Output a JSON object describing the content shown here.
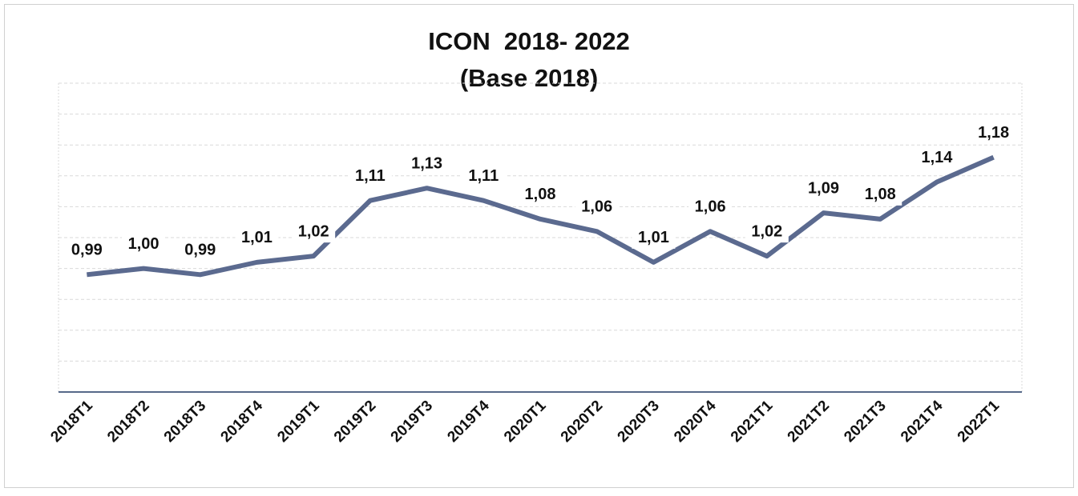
{
  "chart_data": {
    "type": "line",
    "title": "ICON  2018- 2022",
    "subtitle": "(Base 2018)",
    "categories": [
      "2018T1",
      "2018T2",
      "2018T3",
      "2018T4",
      "2019T1",
      "2019T2",
      "2019T3",
      "2019T4",
      "2020T1",
      "2020T2",
      "2020T3",
      "2020T4",
      "2021T1",
      "2021T2",
      "2021T3",
      "2021T4",
      "2022T1"
    ],
    "values": [
      0.99,
      1.0,
      0.99,
      1.01,
      1.02,
      1.11,
      1.13,
      1.11,
      1.08,
      1.06,
      1.01,
      1.06,
      1.02,
      1.09,
      1.08,
      1.14,
      1.18
    ],
    "value_labels": [
      "0,99",
      "1,00",
      "0,99",
      "1,01",
      "1,02",
      "1,11",
      "1,13",
      "1,11",
      "1,08",
      "1,06",
      "1,01",
      "1,06",
      "1,02",
      "1,09",
      "1,08",
      "1,14",
      "1,18"
    ],
    "color": "#5b6a8f",
    "ylim": [
      0.8,
      1.3
    ],
    "yticks": [
      0.8,
      0.85,
      0.9,
      0.95,
      1.0,
      1.05,
      1.1,
      1.15,
      1.2,
      1.25,
      1.3
    ],
    "grid": true
  }
}
